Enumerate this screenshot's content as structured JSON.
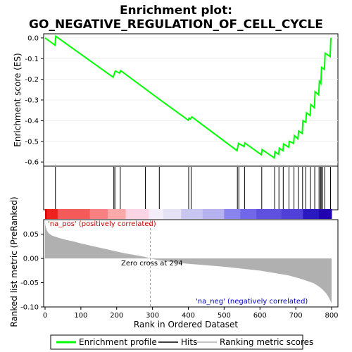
{
  "chart_data": [
    {
      "type": "line",
      "title_line1": "Enrichment plot:",
      "title_line2": "GO_NEGATIVE_REGULATION_OF_CELL_CYCLE",
      "ylabel": "Enrichment score (ES)",
      "ylim": [
        -0.62,
        0.02
      ],
      "yticks": [
        "0.0",
        "-0.1",
        "-0.2",
        "-0.3",
        "-0.4",
        "-0.5",
        "-0.6"
      ],
      "ytick_values": [
        0.0,
        -0.1,
        -0.2,
        -0.3,
        -0.4,
        -0.5,
        -0.6
      ],
      "xlim": [
        0,
        800
      ],
      "line_color": "#00ff00",
      "series": [
        {
          "name": "Enrichment profile",
          "x": [
            0,
            28,
            30,
            190,
            193,
            196,
            208,
            211,
            318,
            400,
            402,
            406,
            410,
            536,
            538,
            540,
            556,
            558,
            604,
            606,
            640,
            642,
            652,
            654,
            664,
            666,
            680,
            682,
            694,
            696,
            706,
            708,
            718,
            720,
            728,
            730,
            740,
            742,
            752,
            754,
            764,
            766,
            770,
            772,
            780,
            782,
            796,
            798
          ],
          "y": [
            0.0,
            -0.035,
            0.008,
            -0.19,
            -0.175,
            -0.16,
            -0.17,
            -0.158,
            -0.295,
            -0.398,
            -0.388,
            -0.392,
            -0.382,
            -0.545,
            -0.528,
            -0.51,
            -0.525,
            -0.508,
            -0.565,
            -0.54,
            -0.58,
            -0.55,
            -0.563,
            -0.533,
            -0.545,
            -0.513,
            -0.528,
            -0.5,
            -0.51,
            -0.472,
            -0.488,
            -0.45,
            -0.462,
            -0.4,
            -0.408,
            -0.362,
            -0.375,
            -0.322,
            -0.338,
            -0.26,
            -0.275,
            -0.21,
            -0.22,
            -0.142,
            -0.152,
            -0.074,
            -0.09,
            0.0
          ]
        }
      ],
      "hits_x": [
        29,
        192,
        195,
        210,
        280,
        319,
        401,
        408,
        537,
        541,
        557,
        605,
        641,
        653,
        665,
        681,
        695,
        707,
        719,
        728,
        741,
        753,
        765,
        769,
        771,
        775,
        781,
        797
      ]
    },
    {
      "type": "heatmap",
      "description_colors": [
        "#ff0000",
        "#ff4444",
        "#ff8888",
        "#ffcccc",
        "#ffffff",
        "#ccccff",
        "#6666ff",
        "#3333ee",
        "#1100bb"
      ],
      "segments": [
        {
          "from": 0,
          "to": 5,
          "color": "#e00000"
        },
        {
          "from": 5,
          "to": 35,
          "color": "#ee2020"
        },
        {
          "from": 35,
          "to": 125,
          "color": "#f55a5a"
        },
        {
          "from": 125,
          "to": 175,
          "color": "#f88080"
        },
        {
          "from": 175,
          "to": 225,
          "color": "#fba8a8"
        },
        {
          "from": 225,
          "to": 290,
          "color": "#fcd4e4"
        },
        {
          "from": 290,
          "to": 330,
          "color": "#f4eefa"
        },
        {
          "from": 330,
          "to": 380,
          "color": "#e6e2f6"
        },
        {
          "from": 380,
          "to": 440,
          "color": "#cac6f2"
        },
        {
          "from": 440,
          "to": 500,
          "color": "#b6b2ee"
        },
        {
          "from": 500,
          "to": 545,
          "color": "#8a84ee"
        },
        {
          "from": 545,
          "to": 590,
          "color": "#7068e8"
        },
        {
          "from": 590,
          "to": 660,
          "color": "#6050e0"
        },
        {
          "from": 660,
          "to": 720,
          "color": "#5040d8"
        },
        {
          "from": 720,
          "to": 765,
          "color": "#2a18c0"
        },
        {
          "from": 765,
          "to": 800,
          "color": "#2000b0"
        }
      ]
    },
    {
      "type": "area",
      "xlabel": "Rank in Ordered Dataset",
      "ylabel": "Ranked list metric (PreRanked)",
      "ylim": [
        -0.1,
        0.08
      ],
      "yticks": [
        "0.05",
        "0.00",
        "-0.05",
        "-0.10"
      ],
      "ytick_values": [
        0.05,
        0.0,
        -0.05,
        -0.1
      ],
      "xticks": [
        "0",
        "100",
        "200",
        "300",
        "400",
        "500",
        "600",
        "700",
        "800"
      ],
      "xtick_values": [
        0,
        100,
        200,
        300,
        400,
        500,
        600,
        700,
        800
      ],
      "fill_color": "#b0b0b0",
      "x": [
        0,
        2,
        5,
        10,
        20,
        40,
        60,
        80,
        100,
        130,
        160,
        190,
        220,
        250,
        280,
        294,
        320,
        360,
        400,
        450,
        500,
        550,
        600,
        640,
        680,
        710,
        730,
        750,
        765,
        775,
        785,
        792,
        797,
        800
      ],
      "y": [
        0.072,
        0.065,
        0.058,
        0.052,
        0.047,
        0.042,
        0.038,
        0.035,
        0.031,
        0.026,
        0.021,
        0.016,
        0.011,
        0.007,
        0.003,
        0.0,
        -0.004,
        -0.008,
        -0.011,
        -0.014,
        -0.017,
        -0.021,
        -0.025,
        -0.03,
        -0.035,
        -0.041,
        -0.046,
        -0.051,
        -0.058,
        -0.064,
        -0.072,
        -0.08,
        -0.088,
        -0.093
      ],
      "zero_cross_label": "Zero cross at 294",
      "zero_cross_x": 294,
      "pos_label": "'na_pos' (positively correlated)",
      "neg_label": "'na_neg' (negatively correlated)"
    }
  ],
  "legend": {
    "items": [
      "Enrichment profile",
      "Hits",
      "Ranking metric scores"
    ]
  }
}
